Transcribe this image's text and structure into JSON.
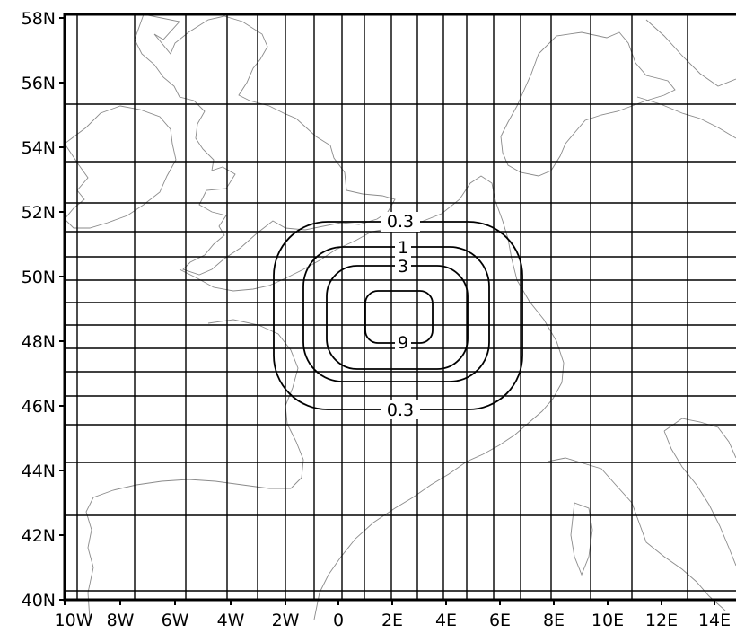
{
  "map": {
    "lat_ticks": [
      "40N",
      "42N",
      "44N",
      "46N",
      "48N",
      "50N",
      "52N",
      "54N",
      "56N",
      "58N"
    ],
    "lon_ticks": [
      "10W",
      "8W",
      "6W",
      "4W",
      "2W",
      "0",
      "2E",
      "4E",
      "6E",
      "8E",
      "10E",
      "12E",
      "14E"
    ],
    "contours": [
      {
        "label": "0.3"
      },
      {
        "label": "1"
      },
      {
        "label": "3"
      },
      {
        "label": "9"
      }
    ],
    "contour_label_positions": [
      "0.3",
      "1",
      "3",
      "9",
      "0.3"
    ],
    "colors": {
      "coastline": "#8a8a8a",
      "grid": "#000000",
      "contour": "#000000",
      "background": "#ffffff"
    }
  }
}
